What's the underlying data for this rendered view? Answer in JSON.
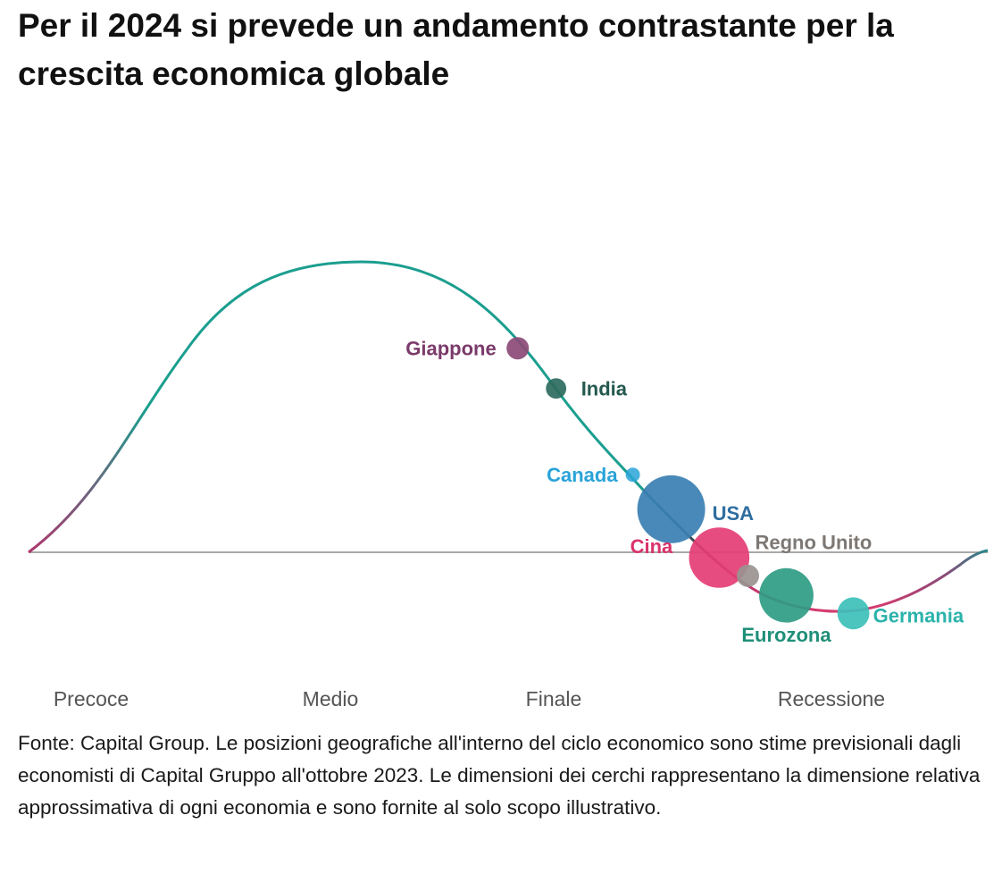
{
  "title": "Per il 2024 si prevede un andamento contrastante per la crescita economica globale",
  "footnote": "Fonte: Capital Group. Le posizioni geografiche all'interno del ciclo economico sono stime previsionali dagli economisti di Capital Gruppo all'ottobre 2023. Le dimensioni dei cerchi rappresentano la dimensione relativa approssimativa di ogni economia e sono fornite al solo scopo illustrativo.",
  "chart_data": {
    "type": "scatter",
    "title": "Per il 2024 si prevede un andamento contrastante per la crescita economica globale",
    "xlabel": "",
    "ylabel": "",
    "grid": false,
    "legend": "none",
    "curve": "business cycle",
    "phases": [
      "Precoce",
      "Medio",
      "Finale",
      "Recessione"
    ],
    "points": [
      {
        "name": "Giappone",
        "cycle_position": 0.51,
        "relative_size": 0.33,
        "color": "#8b4a78"
      },
      {
        "name": "India",
        "cycle_position": 0.55,
        "relative_size": 0.3,
        "color": "#2c6b5e"
      },
      {
        "name": "Canada",
        "cycle_position": 0.63,
        "relative_size": 0.2,
        "color": "#29a3d8"
      },
      {
        "name": "USA",
        "cycle_position": 0.67,
        "relative_size": 1.0,
        "color": "#3a7fb3"
      },
      {
        "name": "Cina",
        "cycle_position": 0.72,
        "relative_size": 0.89,
        "color": "#e43d74"
      },
      {
        "name": "Regno Unito",
        "cycle_position": 0.75,
        "relative_size": 0.33,
        "color": "#9a9390"
      },
      {
        "name": "Eurozona",
        "cycle_position": 0.79,
        "relative_size": 0.8,
        "color": "#2e9c84"
      },
      {
        "name": "Germania",
        "cycle_position": 0.86,
        "relative_size": 0.47,
        "color": "#3cc0b8"
      }
    ]
  },
  "colors": {
    "teal": "#1b9e8f",
    "magenta": "#c9386e",
    "purple": "#8b4a78",
    "baseline": "#8c8c8c"
  }
}
